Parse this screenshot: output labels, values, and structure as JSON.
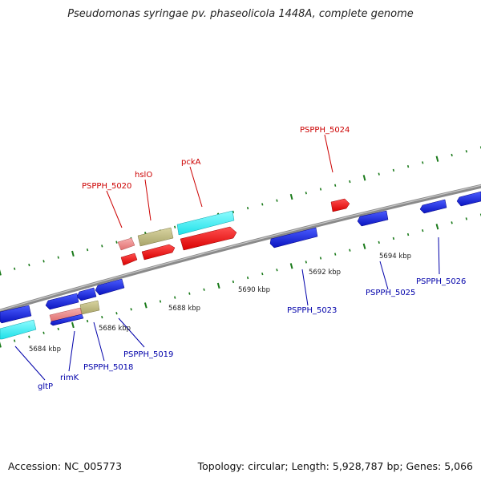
{
  "title": "Pseudomonas syringae pv. phaseolicola 1448A, complete genome",
  "footer": {
    "accession": "Accession: NC_005773",
    "topology": "Topology: circular; Length: 5,928,787 bp; Genes: 5,066"
  },
  "colors": {
    "backbone": "#8a8a8a",
    "tick": "#1a7a1a",
    "forward_label": "#cc0000",
    "reverse_label": "#0000aa"
  },
  "scale_labels": [
    {
      "text": "5684 kbp"
    },
    {
      "text": "5686 kbp"
    },
    {
      "text": "5688 kbp"
    },
    {
      "text": "5690 kbp"
    },
    {
      "text": "5692 kbp"
    },
    {
      "text": "5694 kbp"
    }
  ],
  "gene_labels": {
    "pspph_5024": "PSPPH_5024",
    "pcka": "pckA",
    "hsio": "hslO",
    "pspph_5020": "PSPPH_5020",
    "pspph_5023": "PSPPH_5023",
    "pspph_5025": "PSPPH_5025",
    "pspph_5026": "PSPPH_5026",
    "pspph_5019": "PSPPH_5019",
    "pspph_5018": "PSPPH_5018",
    "rimk": "rimK",
    "gltp": "gltP"
  }
}
